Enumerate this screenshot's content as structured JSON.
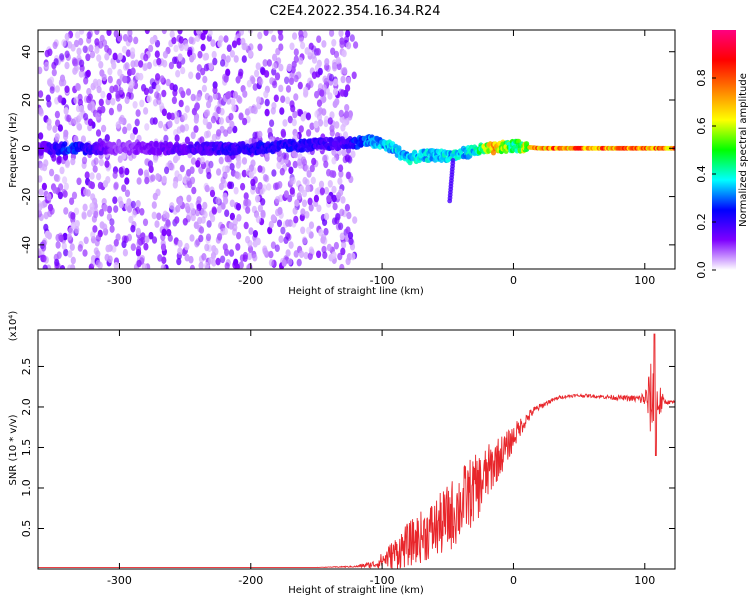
{
  "title": "C2E4.2022.354.16.34.R24",
  "colors": {
    "snr_line": "#e8262b",
    "spectrogram_noise": "#8a2be2",
    "axis": "#000000"
  },
  "chart_data": [
    {
      "type": "heatmap",
      "xlabel": "Height of straight line (km)",
      "ylabel": "Frequency (Hz)",
      "xlim": [
        -362,
        123
      ],
      "ylim": [
        -50,
        49
      ],
      "xticks": [
        -300,
        -200,
        -100,
        0,
        100
      ],
      "xtick_labels": [
        "-300",
        "-200",
        "-100",
        "0",
        "100"
      ],
      "yticks": [
        -40,
        -20,
        0,
        20,
        40
      ],
      "ytick_labels": [
        "-40",
        "-20",
        "0",
        "20",
        "40"
      ],
      "colorbar": {
        "label": "Normalized spectral amplitude",
        "range": [
          0.0,
          1.0
        ],
        "ticks": [
          0.0,
          0.2,
          0.4,
          0.6,
          0.8
        ],
        "tick_labels": [
          "0.0",
          "0.2",
          "0.4",
          "0.6",
          "0.8"
        ],
        "colormap": [
          "#ffffff",
          "#7e00ff",
          "#0000ff",
          "#00ffff",
          "#00ff00",
          "#ffff00",
          "#ff8000",
          "#ff0000",
          "#ff0080"
        ]
      },
      "features": {
        "noise_region_x": [
          -362,
          -120
        ],
        "signal_band_freq_hz": 0,
        "signal_track": [
          {
            "x": -362,
            "y": 0,
            "amp": 0.12
          },
          {
            "x": -340,
            "y": 0,
            "amp": 0.3
          },
          {
            "x": -300,
            "y": 0,
            "amp": 0.1
          },
          {
            "x": -250,
            "y": 0,
            "amp": 0.18
          },
          {
            "x": -200,
            "y": 0,
            "amp": 0.25
          },
          {
            "x": -170,
            "y": 1,
            "amp": 0.25
          },
          {
            "x": -130,
            "y": 2,
            "amp": 0.2
          },
          {
            "x": -110,
            "y": 3,
            "amp": 0.35
          },
          {
            "x": -95,
            "y": 1,
            "amp": 0.4
          },
          {
            "x": -80,
            "y": -4,
            "amp": 0.4
          },
          {
            "x": -65,
            "y": -3,
            "amp": 0.4
          },
          {
            "x": -45,
            "y": -3,
            "amp": 0.4
          },
          {
            "x": -30,
            "y": -1,
            "amp": 0.4
          },
          {
            "x": -15,
            "y": 0,
            "amp": 0.8
          },
          {
            "x": 0,
            "y": 1,
            "amp": 0.5
          },
          {
            "x": 20,
            "y": 0,
            "amp": 0.85
          },
          {
            "x": 60,
            "y": 0,
            "amp": 0.85
          },
          {
            "x": 100,
            "y": 0,
            "amp": 0.85
          },
          {
            "x": 123,
            "y": 0,
            "amp": 0.85
          }
        ]
      }
    },
    {
      "type": "line",
      "xlabel": "Height of straight line (km)",
      "ylabel": "SNR (10 * v/v)",
      "y_multiplier": "(x10⁴)",
      "xlim": [
        -362,
        123
      ],
      "ylim": [
        0,
        2.95
      ],
      "xticks": [
        -300,
        -200,
        -100,
        0,
        100
      ],
      "xtick_labels": [
        "-300",
        "-200",
        "-100",
        "0",
        "100"
      ],
      "yticks": [
        0.5,
        1.0,
        1.5,
        2.0,
        2.5
      ],
      "ytick_labels": [
        "0.5",
        "1.0",
        "1.5",
        "2.0",
        "2.5"
      ],
      "series": [
        {
          "x": [
            -362,
            -300,
            -200,
            -150,
            -120,
            -105,
            -95,
            -85,
            -75,
            -65,
            -55,
            -45,
            -35,
            -25,
            -15,
            -5,
            5,
            15,
            25,
            35,
            45,
            55,
            65,
            75,
            85,
            95,
            100,
            105,
            110,
            115,
            123
          ],
          "y": [
            0.02,
            0.02,
            0.02,
            0.02,
            0.03,
            0.06,
            0.15,
            0.25,
            0.35,
            0.45,
            0.55,
            0.7,
            0.9,
            1.05,
            1.3,
            1.5,
            1.75,
            1.95,
            2.05,
            2.12,
            2.14,
            2.14,
            2.13,
            2.12,
            2.11,
            2.1,
            2.1,
            2.08,
            2.07,
            2.06,
            2.06
          ],
          "noise_envelope": [
            0,
            0,
            0,
            0,
            0.01,
            0.05,
            0.15,
            0.25,
            0.3,
            0.35,
            0.4,
            0.45,
            0.45,
            0.4,
            0.3,
            0.2,
            0.12,
            0.05,
            0.03,
            0.02,
            0.02,
            0.02,
            0.02,
            0.03,
            0.03,
            0.05,
            0.1,
            0.5,
            0.3,
            0.03,
            0.02
          ]
        }
      ]
    }
  ]
}
